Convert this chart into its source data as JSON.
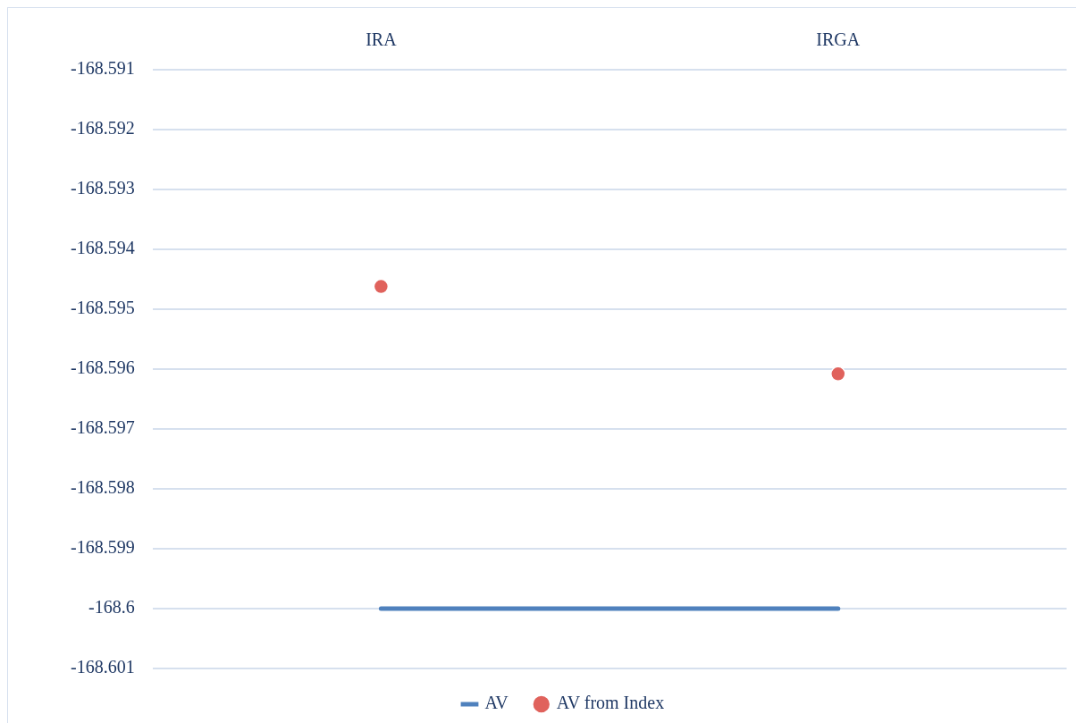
{
  "chart_data": {
    "type": "line",
    "categories": [
      "IRA",
      "IRGA"
    ],
    "series": [
      {
        "name": "AV",
        "color": "#4f81bd",
        "marker": "none",
        "values": [
          -168.6,
          -168.6
        ]
      },
      {
        "name": "AV from Index",
        "type": "scatter",
        "color": "#e0625c",
        "marker": "circle",
        "values": [
          -168.59462,
          -168.59608
        ]
      }
    ],
    "ylim": [
      -168.601,
      -168.591
    ],
    "yticks": [
      -168.591,
      -168.592,
      -168.593,
      -168.594,
      -168.595,
      -168.596,
      -168.597,
      -168.598,
      -168.599,
      -168.6,
      -168.601
    ],
    "grid": "y",
    "legend": "bottom"
  }
}
